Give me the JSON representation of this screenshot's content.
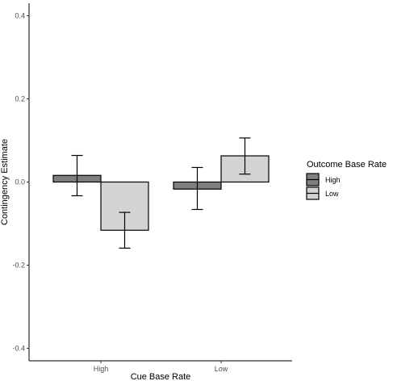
{
  "chart_data": {
    "type": "bar",
    "title": "",
    "xlabel": "Cue Base Rate",
    "ylabel": "Contingency Estimate",
    "categories": [
      "High",
      "Low"
    ],
    "ylim": [
      -0.43,
      0.43
    ],
    "yticks": [
      0.4,
      0.2,
      0.0,
      -0.2,
      -0.4
    ],
    "ytick_labels": [
      "0.4",
      "0.2",
      "0.0",
      "-0.2",
      "-0.4"
    ],
    "grid": false,
    "legend": {
      "title": "Outcome Base Rate",
      "position": "right"
    },
    "series": [
      {
        "name": "High",
        "color": "#7f7f7f",
        "values": [
          0.016,
          -0.017
        ],
        "err_low": [
          -0.033,
          -0.066
        ],
        "err_high": [
          0.064,
          0.035
        ]
      },
      {
        "name": "Low",
        "color": "#d3d3d3",
        "values": [
          -0.116,
          0.063
        ],
        "err_low": [
          -0.159,
          0.019
        ],
        "err_high": [
          -0.073,
          0.106
        ]
      }
    ]
  }
}
